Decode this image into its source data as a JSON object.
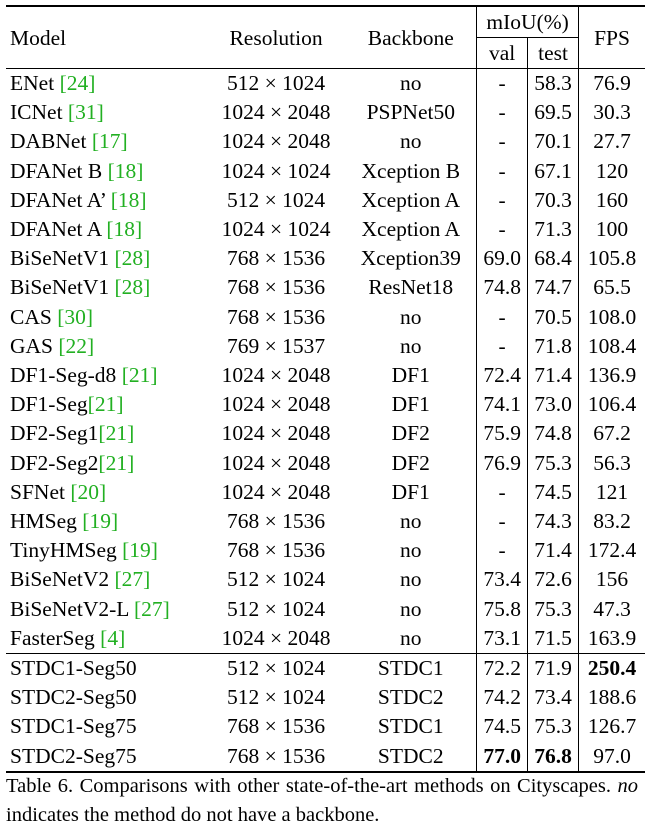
{
  "headers": {
    "model": "Model",
    "resolution": "Resolution",
    "backbone": "Backbone",
    "miou": "mIoU(%)",
    "val": "val",
    "test": "test",
    "fps": "FPS"
  },
  "rows": [
    {
      "model": "ENet ",
      "ref": "[24]",
      "res": "512 × 1024",
      "bb": "no",
      "val": "-",
      "test": "58.3",
      "fps": "76.9"
    },
    {
      "model": "ICNet ",
      "ref": "[31]",
      "res": "1024 × 2048",
      "bb": "PSPNet50",
      "val": "-",
      "test": "69.5",
      "fps": "30.3"
    },
    {
      "model": "DABNet ",
      "ref": "[17]",
      "res": "1024 × 2048",
      "bb": "no",
      "val": "-",
      "test": "70.1",
      "fps": "27.7"
    },
    {
      "model": "DFANet B ",
      "ref": "[18]",
      "res": "1024 × 1024",
      "bb": "Xception B",
      "val": "-",
      "test": "67.1",
      "fps": "120"
    },
    {
      "model": "DFANet A’ ",
      "ref": "[18]",
      "res": "512 × 1024",
      "bb": "Xception A",
      "val": "-",
      "test": "70.3",
      "fps": "160"
    },
    {
      "model": "DFANet A ",
      "ref": "[18]",
      "res": "1024 × 1024",
      "bb": "Xception A",
      "val": "-",
      "test": "71.3",
      "fps": "100"
    },
    {
      "model": "BiSeNetV1 ",
      "ref": "[28]",
      "res": "768 × 1536",
      "bb": "Xception39",
      "val": "69.0",
      "test": "68.4",
      "fps": "105.8"
    },
    {
      "model": "BiSeNetV1 ",
      "ref": "[28]",
      "res": "768 × 1536",
      "bb": "ResNet18",
      "val": "74.8",
      "test": "74.7",
      "fps": "65.5"
    },
    {
      "model": "CAS ",
      "ref": "[30]",
      "res": "768 × 1536",
      "bb": "no",
      "val": "-",
      "test": "70.5",
      "fps": "108.0"
    },
    {
      "model": "GAS ",
      "ref": "[22]",
      "res": "769 × 1537",
      "bb": "no",
      "val": "-",
      "test": "71.8",
      "fps": "108.4"
    },
    {
      "model": "DF1-Seg-d8 ",
      "ref": "[21]",
      "res": "1024 × 2048",
      "bb": "DF1",
      "val": "72.4",
      "test": "71.4",
      "fps": "136.9"
    },
    {
      "model": "DF1-Seg",
      "ref": "[21]",
      "res": "1024 × 2048",
      "bb": "DF1",
      "val": "74.1",
      "test": "73.0",
      "fps": "106.4"
    },
    {
      "model": "DF2-Seg1",
      "ref": "[21]",
      "res": "1024 × 2048",
      "bb": "DF2",
      "val": "75.9",
      "test": "74.8",
      "fps": "67.2"
    },
    {
      "model": "DF2-Seg2",
      "ref": "[21]",
      "res": "1024 × 2048",
      "bb": "DF2",
      "val": "76.9",
      "test": "75.3",
      "fps": "56.3"
    },
    {
      "model": "SFNet ",
      "ref": "[20]",
      "res": "1024 × 2048",
      "bb": "DF1",
      "val": "-",
      "test": "74.5",
      "fps": "121"
    },
    {
      "model": "HMSeg ",
      "ref": "[19]",
      "res": "768 × 1536",
      "bb": "no",
      "val": "-",
      "test": "74.3",
      "fps": "83.2"
    },
    {
      "model": "TinyHMSeg ",
      "ref": "[19]",
      "res": "768 × 1536",
      "bb": "no",
      "val": "-",
      "test": "71.4",
      "fps": "172.4"
    },
    {
      "model": "BiSeNetV2 ",
      "ref": "[27]",
      "res": "512 × 1024",
      "bb": "no",
      "val": "73.4",
      "test": "72.6",
      "fps": "156"
    },
    {
      "model": "BiSeNetV2-L ",
      "ref": "[27]",
      "res": "512 × 1024",
      "bb": "no",
      "val": "75.8",
      "test": "75.3",
      "fps": "47.3"
    },
    {
      "model": "FasterSeg ",
      "ref": "[4]",
      "res": "1024 × 2048",
      "bb": "no",
      "val": "73.1",
      "test": "71.5",
      "fps": "163.9"
    }
  ],
  "ours": [
    {
      "model": "STDC1-Seg50",
      "res": "512 × 1024",
      "bb": "STDC1",
      "val": "72.2",
      "test": "71.9",
      "fps": "250.4"
    },
    {
      "model": "STDC2-Seg50",
      "res": "512 × 1024",
      "bb": "STDC2",
      "val": "74.2",
      "test": "73.4",
      "fps": "188.6"
    },
    {
      "model": "STDC1-Seg75",
      "res": "768 × 1536",
      "bb": "STDC1",
      "val": "74.5",
      "test": "75.3",
      "fps": "126.7"
    },
    {
      "model": "STDC2-Seg75",
      "res": "768 × 1536",
      "bb": "STDC2",
      "val": "77.0",
      "test": "76.8",
      "fps": "97.0"
    }
  ],
  "caption": {
    "before": "Table 6. Comparisons with other state-of-the-art methods on Cityscapes. ",
    "italic": "no",
    "after": " indicates the method do not have a backbone."
  },
  "colors": {
    "reference": "#22b022"
  }
}
